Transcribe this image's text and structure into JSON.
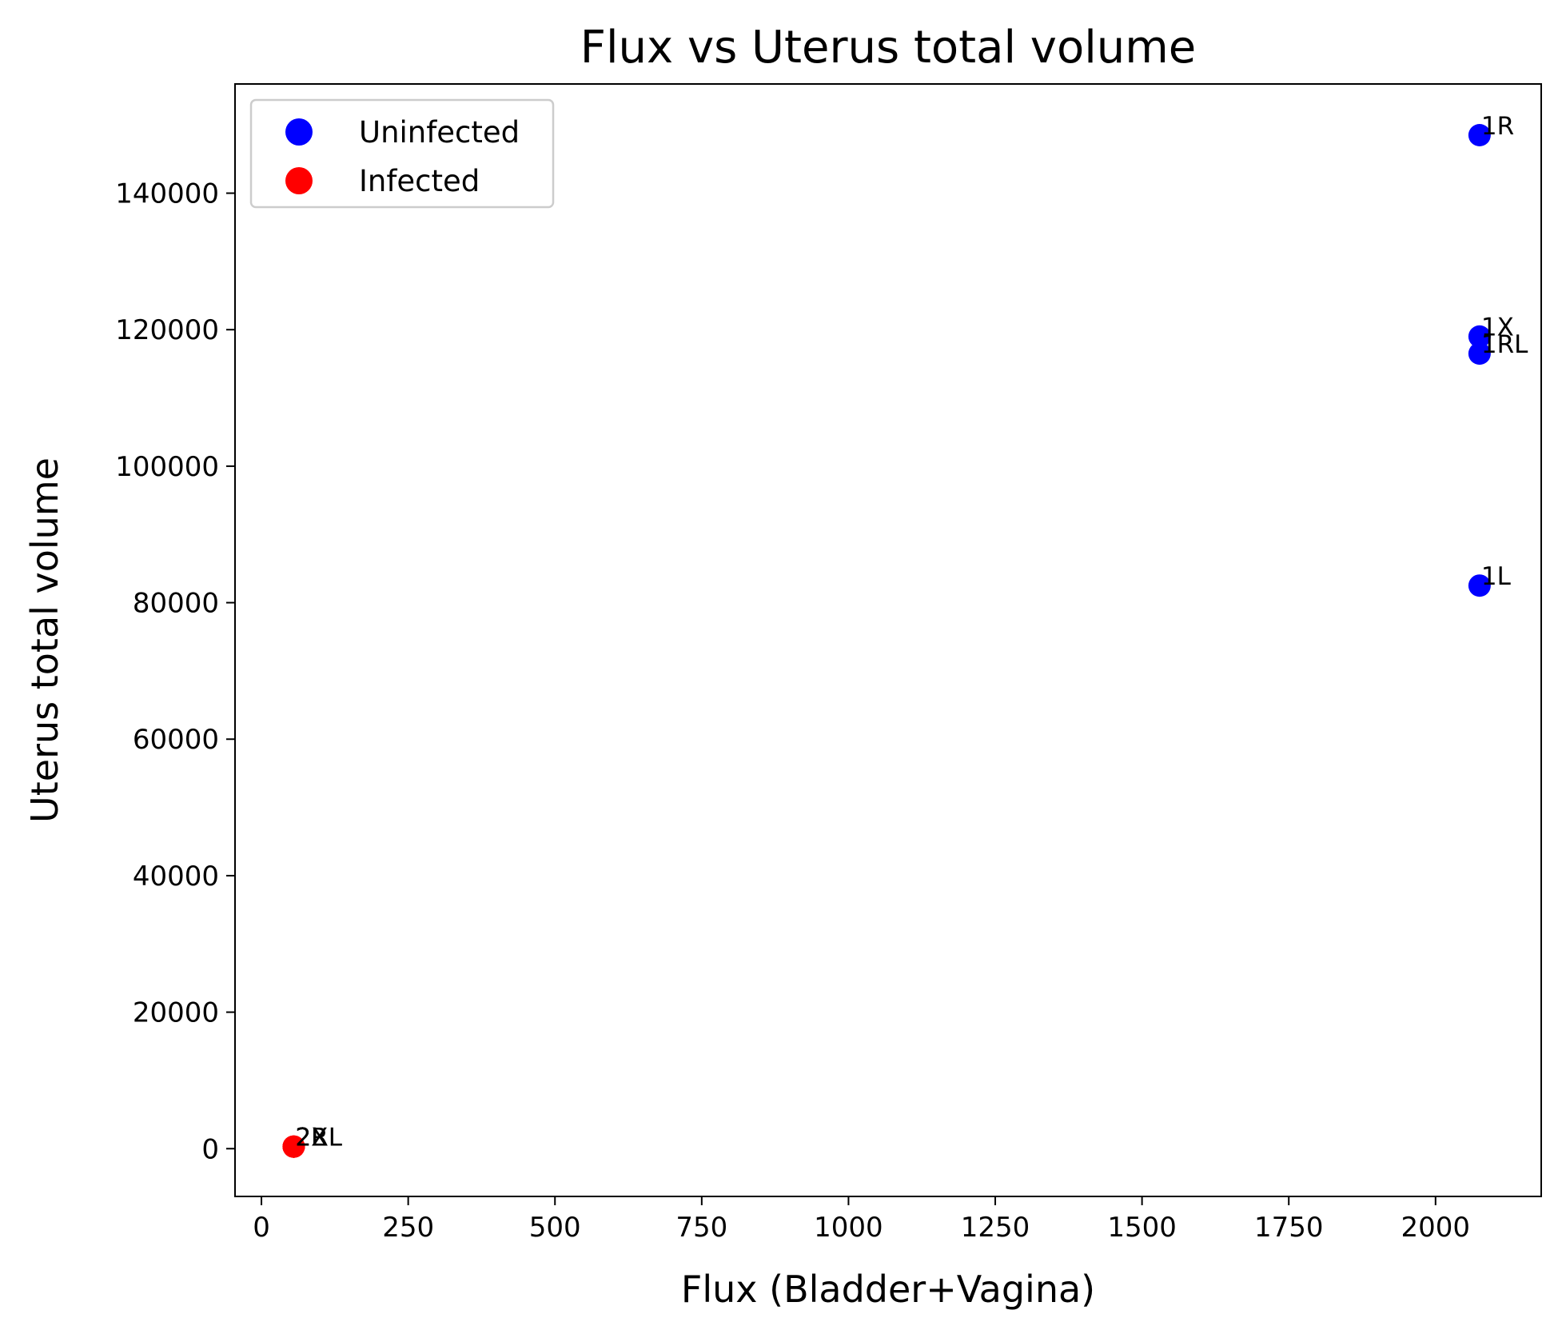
{
  "chart_data": {
    "type": "scatter",
    "title": "Flux vs Uterus total volume",
    "xlabel": "Flux (Bladder+Vagina)",
    "ylabel": "Uterus total volume",
    "xlim": [
      -45,
      2180
    ],
    "ylim": [
      -7000,
      156000
    ],
    "xticks": [
      0,
      250,
      500,
      750,
      1000,
      1250,
      1500,
      1750,
      2000
    ],
    "xtick_labels": [
      "0",
      "250",
      "500",
      "750",
      "1000",
      "1250",
      "1500",
      "1750",
      "2000"
    ],
    "yticks": [
      0,
      20000,
      40000,
      60000,
      80000,
      100000,
      120000,
      140000
    ],
    "ytick_labels": [
      "0",
      "20000",
      "40000",
      "60000",
      "80000",
      "100000",
      "120000",
      "140000"
    ],
    "grid": false,
    "legend_position": "top-left",
    "series": [
      {
        "name": "Uninfected",
        "color": "#0000ff",
        "points": [
          {
            "x": 2075,
            "y": 148500,
            "label": "1R"
          },
          {
            "x": 2075,
            "y": 119000,
            "label": "1X"
          },
          {
            "x": 2075,
            "y": 116500,
            "label": "1RL"
          },
          {
            "x": 2075,
            "y": 82500,
            "label": "1L"
          }
        ]
      },
      {
        "name": "Infected",
        "color": "#ff0000",
        "points": [
          {
            "x": 55,
            "y": 300,
            "label": "2R"
          },
          {
            "x": 55,
            "y": 300,
            "label": "2L"
          },
          {
            "x": 55,
            "y": 300,
            "label": "2X"
          },
          {
            "x": 55,
            "y": 300,
            "label": "2RL"
          }
        ]
      }
    ]
  }
}
